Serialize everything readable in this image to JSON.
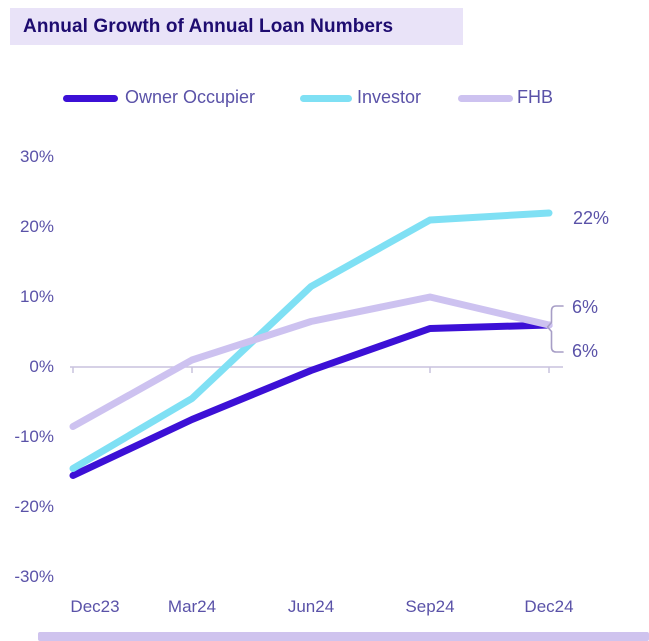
{
  "title": "Annual Growth of Annual Loan Numbers",
  "legend": {
    "items": [
      {
        "label": "Owner Occupier"
      },
      {
        "label": "Investor"
      },
      {
        "label": "FHB"
      }
    ]
  },
  "axis": {
    "y_ticks": [
      "30%",
      "20%",
      "10%",
      "0%",
      "-10%",
      "-20%",
      "-30%"
    ],
    "x_ticks": [
      "Dec23",
      "Mar24",
      "Jun24",
      "Sep24",
      "Dec24"
    ]
  },
  "annotations": {
    "investor_end": "22%",
    "fhb_end": "6%",
    "owner_occupier_end": "6%"
  },
  "colors": {
    "banner_bg": "#E9E3F8",
    "title_text": "#1E0C70",
    "label_text": "#5A52A8",
    "axis_line": "#C9C2DE",
    "brace": "#A79EC6",
    "footer_bar": "#CFC3EE"
  },
  "chart_data": {
    "type": "line",
    "title": "Annual Growth of Annual Loan Numbers",
    "categories": [
      "Dec23",
      "Mar24",
      "Jun24",
      "Sep24",
      "Dec24"
    ],
    "series": [
      {
        "name": "Owner Occupier",
        "color": "#3C10D6",
        "values": [
          -15.5,
          -7.5,
          -0.5,
          5.5,
          6
        ],
        "end_label": "6%"
      },
      {
        "name": "Investor",
        "color": "#7FE0F4",
        "values": [
          -14.5,
          -4.5,
          11.5,
          21,
          22
        ],
        "end_label": "22%"
      },
      {
        "name": "FHB",
        "color": "#CDC2F0",
        "values": [
          -8.5,
          1,
          6.5,
          10,
          6
        ],
        "end_label": "6%"
      }
    ],
    "ylabel": "",
    "xlabel": "",
    "ylim": [
      -30,
      30
    ],
    "y_tick_step": 10,
    "grid": false,
    "legend_position": "top",
    "zero_axis_line": true
  }
}
